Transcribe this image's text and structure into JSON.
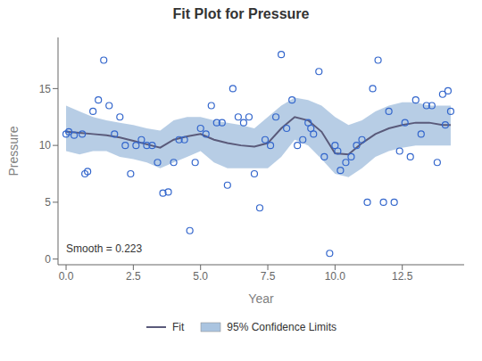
{
  "chart_data": {
    "type": "scatter",
    "title": "Fit Plot for Pressure",
    "xlabel": "Year",
    "ylabel": "Pressure",
    "annotation": "Smooth = 0.223",
    "xlim": [
      -0.3,
      14.8
    ],
    "ylim": [
      -0.5,
      19.5
    ],
    "xticks": [
      {
        "value": 0.0,
        "label": "0.0"
      },
      2.5,
      {
        "value": 5.0,
        "label": "5.0"
      },
      7.5,
      {
        "value": 10.0,
        "label": "10.0"
      },
      12.5
    ],
    "yticks": [
      0,
      5,
      10,
      15
    ],
    "legend": "bottom",
    "series": [
      {
        "name": "Fit",
        "type": "line",
        "color": "#5a5a7a",
        "x": [
          0.0,
          0.5,
          1.0,
          1.5,
          2.0,
          2.5,
          3.0,
          3.5,
          4.0,
          4.5,
          5.0,
          5.5,
          6.0,
          6.5,
          7.0,
          7.5,
          8.0,
          8.5,
          9.0,
          9.5,
          10.0,
          10.5,
          11.0,
          11.5,
          12.0,
          12.5,
          13.0,
          13.5,
          14.0,
          14.3
        ],
        "values": [
          11.2,
          11.1,
          11.0,
          10.9,
          10.7,
          10.4,
          10.1,
          9.8,
          10.5,
          10.8,
          11.0,
          10.5,
          10.2,
          10.0,
          9.9,
          10.2,
          11.5,
          12.5,
          12.2,
          11.2,
          9.3,
          9.2,
          10.2,
          11.0,
          11.5,
          11.8,
          12.0,
          12.0,
          11.8,
          11.8
        ]
      },
      {
        "name": "95% Confidence Limits",
        "type": "band",
        "color": "#aac4e0",
        "x": [
          0.0,
          0.5,
          1.0,
          1.5,
          2.0,
          2.5,
          3.0,
          3.5,
          4.0,
          4.5,
          5.0,
          5.5,
          6.0,
          6.5,
          7.0,
          7.5,
          8.0,
          8.5,
          9.0,
          9.5,
          10.0,
          10.5,
          11.0,
          11.5,
          12.0,
          12.5,
          13.0,
          13.5,
          14.0,
          14.3
        ],
        "upper": [
          13.5,
          13.0,
          12.5,
          12.2,
          12.0,
          11.8,
          11.5,
          11.3,
          12.2,
          12.5,
          12.5,
          12.2,
          12.0,
          11.8,
          11.5,
          12.5,
          13.5,
          14.2,
          14.0,
          13.5,
          12.5,
          11.8,
          12.2,
          13.0,
          13.5,
          13.8,
          13.8,
          13.5,
          13.5,
          13.5
        ],
        "lower": [
          9.5,
          9.2,
          9.5,
          9.5,
          9.0,
          8.8,
          8.5,
          8.0,
          8.5,
          9.0,
          9.5,
          8.5,
          8.0,
          8.0,
          8.0,
          8.0,
          9.0,
          10.5,
          10.0,
          8.8,
          7.5,
          7.2,
          8.0,
          9.0,
          9.5,
          9.8,
          10.0,
          10.0,
          10.0,
          10.0
        ]
      },
      {
        "type": "scatter",
        "color": "#3366CC",
        "marker": "circle",
        "x": [
          0.0,
          0.1,
          0.3,
          0.6,
          0.7,
          0.8,
          1.0,
          1.2,
          1.4,
          1.6,
          1.8,
          2.0,
          2.2,
          2.4,
          2.6,
          2.8,
          3.0,
          3.2,
          3.4,
          3.6,
          3.8,
          4.0,
          4.2,
          4.4,
          4.6,
          4.8,
          5.0,
          5.2,
          5.4,
          5.6,
          5.8,
          6.0,
          6.2,
          6.4,
          6.6,
          6.8,
          7.0,
          7.2,
          7.4,
          7.6,
          7.8,
          8.0,
          8.2,
          8.4,
          8.6,
          8.8,
          9.0,
          9.1,
          9.2,
          9.4,
          9.6,
          9.8,
          10.0,
          10.1,
          10.2,
          10.4,
          10.6,
          10.8,
          11.0,
          11.2,
          11.4,
          11.6,
          11.8,
          12.0,
          12.2,
          12.4,
          12.6,
          12.8,
          13.0,
          13.2,
          13.4,
          13.6,
          13.8,
          14.0,
          14.1,
          14.2,
          14.3
        ],
        "values": [
          11.0,
          11.2,
          10.9,
          11.0,
          7.5,
          7.7,
          13.0,
          14.0,
          17.5,
          13.5,
          11.0,
          12.5,
          10.0,
          7.5,
          10.0,
          10.5,
          10.0,
          10.0,
          8.5,
          5.8,
          5.9,
          8.5,
          10.5,
          10.5,
          2.5,
          8.5,
          11.5,
          11.0,
          13.5,
          12.0,
          12.0,
          6.5,
          15.0,
          12.5,
          12.0,
          12.5,
          7.5,
          4.5,
          10.5,
          10.0,
          12.5,
          18.0,
          11.5,
          14.0,
          10.0,
          10.5,
          12.0,
          11.5,
          11.0,
          16.5,
          9.0,
          0.5,
          10.0,
          9.5,
          7.8,
          8.5,
          9.0,
          10.0,
          10.5,
          5.0,
          15.0,
          17.5,
          5.0,
          13.0,
          5.0,
          9.5,
          12.0,
          9.0,
          14.0,
          11.0,
          13.5,
          13.5,
          8.5,
          14.5,
          11.8,
          14.8,
          13.0
        ]
      }
    ]
  }
}
